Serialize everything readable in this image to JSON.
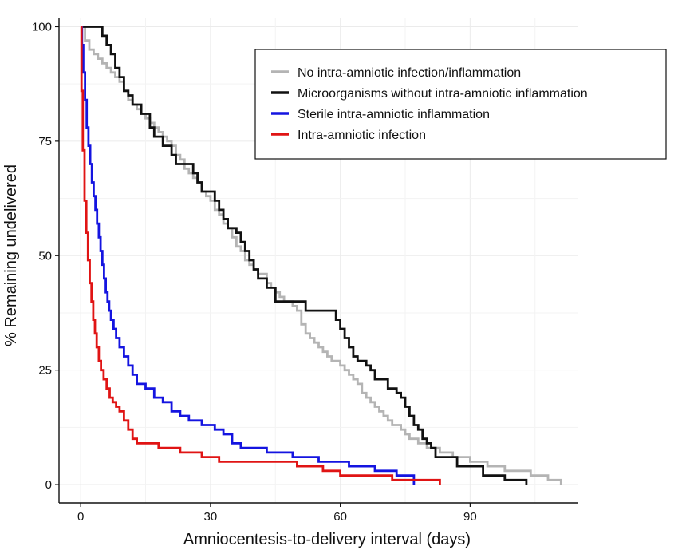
{
  "chart_data": {
    "type": "line",
    "title": "",
    "xlabel": "Amniocentesis-to-delivery interval (days)",
    "ylabel": "% Remaining undelivered",
    "xlim": [
      -5,
      115
    ],
    "ylim": [
      -4,
      102
    ],
    "x_ticks": [
      0,
      30,
      60,
      90
    ],
    "x_tick_labels": [
      "0",
      "30",
      "60",
      "90"
    ],
    "y_ticks": [
      0,
      25,
      50,
      75,
      100
    ],
    "y_tick_labels": [
      "0",
      "25",
      "50",
      "75",
      "100"
    ],
    "grid": true,
    "legend_position": "top-right",
    "step": true,
    "series": [
      {
        "name": "No intra-amniotic infection/inflammation",
        "color": "#b4b4b4",
        "points": [
          [
            0,
            100
          ],
          [
            1,
            97
          ],
          [
            2,
            95
          ],
          [
            3,
            94
          ],
          [
            4,
            93
          ],
          [
            5,
            92
          ],
          [
            6,
            91
          ],
          [
            7,
            90
          ],
          [
            8,
            89
          ],
          [
            9,
            88
          ],
          [
            10,
            86
          ],
          [
            11,
            84
          ],
          [
            12,
            83
          ],
          [
            13,
            82
          ],
          [
            14,
            81
          ],
          [
            15,
            80
          ],
          [
            16,
            79
          ],
          [
            17,
            78
          ],
          [
            18,
            77
          ],
          [
            19,
            76
          ],
          [
            20,
            75
          ],
          [
            21,
            74
          ],
          [
            22,
            72
          ],
          [
            23,
            71
          ],
          [
            24,
            69
          ],
          [
            25,
            68
          ],
          [
            26,
            67
          ],
          [
            27,
            66
          ],
          [
            28,
            64
          ],
          [
            29,
            63
          ],
          [
            30,
            62
          ],
          [
            31,
            60
          ],
          [
            32,
            59
          ],
          [
            33,
            57
          ],
          [
            34,
            56
          ],
          [
            35,
            54
          ],
          [
            36,
            52
          ],
          [
            37,
            51
          ],
          [
            38,
            49
          ],
          [
            39,
            48
          ],
          [
            40,
            47
          ],
          [
            41,
            46
          ],
          [
            42,
            46
          ],
          [
            43,
            44
          ],
          [
            44,
            43
          ],
          [
            45,
            42
          ],
          [
            46,
            41
          ],
          [
            47,
            40
          ],
          [
            48,
            40
          ],
          [
            49,
            39
          ],
          [
            50,
            38
          ],
          [
            51,
            35
          ],
          [
            52,
            33
          ],
          [
            53,
            32
          ],
          [
            54,
            31
          ],
          [
            55,
            30
          ],
          [
            56,
            29
          ],
          [
            57,
            28
          ],
          [
            58,
            27
          ],
          [
            59,
            27
          ],
          [
            60,
            26
          ],
          [
            61,
            25
          ],
          [
            62,
            24
          ],
          [
            63,
            23
          ],
          [
            64,
            22
          ],
          [
            65,
            20
          ],
          [
            66,
            19
          ],
          [
            67,
            18
          ],
          [
            68,
            17
          ],
          [
            69,
            16
          ],
          [
            70,
            15
          ],
          [
            71,
            14
          ],
          [
            72,
            13
          ],
          [
            73,
            13
          ],
          [
            74,
            12
          ],
          [
            75,
            11
          ],
          [
            76,
            10
          ],
          [
            77,
            10
          ],
          [
            78,
            9
          ],
          [
            79,
            9
          ],
          [
            80,
            8
          ],
          [
            82,
            8
          ],
          [
            83,
            7
          ],
          [
            85,
            7
          ],
          [
            86,
            6
          ],
          [
            88,
            6
          ],
          [
            90,
            5
          ],
          [
            92,
            5
          ],
          [
            94,
            4
          ],
          [
            96,
            4
          ],
          [
            98,
            3
          ],
          [
            100,
            3
          ],
          [
            102,
            3
          ],
          [
            104,
            2
          ],
          [
            106,
            2
          ],
          [
            108,
            1
          ],
          [
            110,
            1
          ],
          [
            111,
            0
          ]
        ]
      },
      {
        "name": "Microorganisms without intra-amniotic inflammation",
        "color": "#111111",
        "points": [
          [
            0,
            100
          ],
          [
            3,
            100
          ],
          [
            5,
            98
          ],
          [
            6,
            96
          ],
          [
            7,
            94
          ],
          [
            8,
            91
          ],
          [
            9,
            89
          ],
          [
            10,
            86
          ],
          [
            11,
            85
          ],
          [
            12,
            83
          ],
          [
            14,
            81
          ],
          [
            16,
            78
          ],
          [
            17,
            76
          ],
          [
            19,
            74
          ],
          [
            21,
            72
          ],
          [
            22,
            70
          ],
          [
            25,
            70
          ],
          [
            26,
            68
          ],
          [
            27,
            66
          ],
          [
            28,
            64
          ],
          [
            30,
            64
          ],
          [
            31,
            62
          ],
          [
            32,
            60
          ],
          [
            33,
            58
          ],
          [
            34,
            56
          ],
          [
            36,
            55
          ],
          [
            37,
            53
          ],
          [
            38,
            51
          ],
          [
            39,
            49
          ],
          [
            40,
            47
          ],
          [
            41,
            45
          ],
          [
            43,
            43
          ],
          [
            45,
            40
          ],
          [
            51,
            40
          ],
          [
            52,
            38
          ],
          [
            58,
            38
          ],
          [
            59,
            36
          ],
          [
            60,
            34
          ],
          [
            61,
            32
          ],
          [
            62,
            30
          ],
          [
            63,
            28
          ],
          [
            64,
            27
          ],
          [
            66,
            26
          ],
          [
            67,
            25
          ],
          [
            68,
            23
          ],
          [
            70,
            23
          ],
          [
            71,
            21
          ],
          [
            73,
            20
          ],
          [
            74,
            19
          ],
          [
            75,
            17
          ],
          [
            76,
            15
          ],
          [
            77,
            13
          ],
          [
            78,
            12
          ],
          [
            79,
            10
          ],
          [
            80,
            9
          ],
          [
            81,
            8
          ],
          [
            82,
            6
          ],
          [
            86,
            6
          ],
          [
            87,
            4
          ],
          [
            92,
            4
          ],
          [
            93,
            2
          ],
          [
            97,
            2
          ],
          [
            98,
            1
          ],
          [
            102,
            1
          ],
          [
            103,
            0
          ]
        ]
      },
      {
        "name": "Sterile intra-amniotic inflammation",
        "color": "#1414e0",
        "points": [
          [
            0,
            100
          ],
          [
            0.3,
            96
          ],
          [
            0.6,
            90
          ],
          [
            1,
            84
          ],
          [
            1.4,
            78
          ],
          [
            1.8,
            74
          ],
          [
            2.2,
            70
          ],
          [
            2.6,
            66
          ],
          [
            3,
            63
          ],
          [
            3.4,
            60
          ],
          [
            3.8,
            57
          ],
          [
            4.2,
            54
          ],
          [
            4.6,
            51
          ],
          [
            5,
            48
          ],
          [
            5.4,
            45
          ],
          [
            5.8,
            42
          ],
          [
            6.2,
            40
          ],
          [
            6.6,
            38
          ],
          [
            7,
            36
          ],
          [
            7.6,
            34
          ],
          [
            8.2,
            32
          ],
          [
            9,
            30
          ],
          [
            10,
            28
          ],
          [
            11,
            26
          ],
          [
            12,
            24
          ],
          [
            13,
            22
          ],
          [
            15,
            21
          ],
          [
            17,
            19
          ],
          [
            19,
            18
          ],
          [
            21,
            16
          ],
          [
            23,
            15
          ],
          [
            25,
            14
          ],
          [
            28,
            13
          ],
          [
            31,
            12
          ],
          [
            33,
            11
          ],
          [
            35,
            9
          ],
          [
            37,
            8
          ],
          [
            41,
            8
          ],
          [
            43,
            7
          ],
          [
            47,
            7
          ],
          [
            49,
            6
          ],
          [
            53,
            6
          ],
          [
            55,
            5
          ],
          [
            60,
            5
          ],
          [
            62,
            4
          ],
          [
            66,
            4
          ],
          [
            68,
            3
          ],
          [
            71,
            3
          ],
          [
            73,
            2
          ],
          [
            76,
            2
          ],
          [
            77,
            0
          ]
        ]
      },
      {
        "name": "Intra-amniotic infection",
        "color": "#e01414",
        "points": [
          [
            0,
            100
          ],
          [
            0.2,
            86
          ],
          [
            0.5,
            73
          ],
          [
            0.9,
            62
          ],
          [
            1.3,
            55
          ],
          [
            1.7,
            49
          ],
          [
            2.1,
            44
          ],
          [
            2.5,
            40
          ],
          [
            2.9,
            36
          ],
          [
            3.3,
            33
          ],
          [
            3.7,
            30
          ],
          [
            4.2,
            27
          ],
          [
            4.7,
            25
          ],
          [
            5.3,
            23
          ],
          [
            6,
            21
          ],
          [
            6.7,
            19
          ],
          [
            7.4,
            18
          ],
          [
            8.2,
            17
          ],
          [
            9,
            16
          ],
          [
            10,
            14
          ],
          [
            11,
            12
          ],
          [
            12,
            10
          ],
          [
            13,
            9
          ],
          [
            16,
            9
          ],
          [
            18,
            8
          ],
          [
            21,
            8
          ],
          [
            23,
            7
          ],
          [
            26,
            7
          ],
          [
            28,
            6
          ],
          [
            30,
            6
          ],
          [
            32,
            5
          ],
          [
            48,
            5
          ],
          [
            50,
            4
          ],
          [
            54,
            4
          ],
          [
            56,
            3
          ],
          [
            58,
            3
          ],
          [
            60,
            2
          ],
          [
            70,
            2
          ],
          [
            72,
            1
          ],
          [
            80,
            1
          ],
          [
            82,
            1
          ],
          [
            83,
            0
          ]
        ]
      }
    ]
  }
}
